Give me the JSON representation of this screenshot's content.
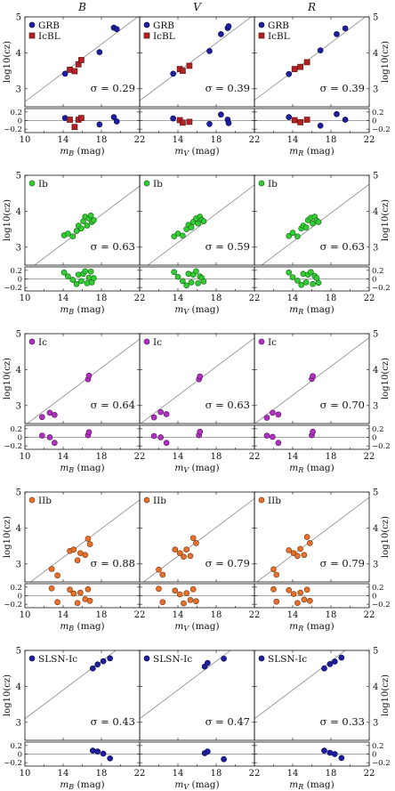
{
  "figure": {
    "column_titles": [
      "B",
      "V",
      "R"
    ]
  },
  "chart_data": [
    {
      "type": "scatter",
      "row_label": "GRB / IcBL",
      "legend": [
        "GRB",
        "IcBL"
      ],
      "colors": {
        "GRB": "#1e1ea0",
        "IcBL": "#b22222"
      },
      "legend_position": "top-left",
      "ylabel_left": "log10(cz)",
      "ylabel_right": "log10(cz)",
      "xlabels": [
        "mB (mag)",
        "mV (mag)",
        "mR (mag)"
      ],
      "xlim": [
        10,
        22
      ],
      "ylim": [
        2.5,
        5.0
      ],
      "residual_ylim": [
        -0.28,
        0.28
      ],
      "xticks": [
        10,
        14,
        18,
        22
      ],
      "yticks": [
        3,
        4,
        5
      ],
      "residual_yticks": [
        -0.2,
        0,
        0.2
      ],
      "fit_slope": 0.2,
      "sigma": [
        "σ = 0.29",
        "σ = 0.39",
        "σ = 0.39"
      ],
      "panels": [
        {
          "filter": "B",
          "fit_intercept": 0.64,
          "series": [
            {
              "name": "GRB",
              "marker": "circle",
              "x": [
                14.2,
                17.8,
                19.3,
                19.6
              ],
              "y": [
                3.42,
                4.02,
                4.7,
                4.66
              ],
              "resid": [
                0.06,
                -0.09,
                0.08,
                -0.02
              ]
            },
            {
              "name": "IcBL",
              "marker": "square",
              "x": [
                14.7,
                15.2,
                15.6,
                15.9
              ],
              "y": [
                3.53,
                3.49,
                3.68,
                3.8
              ],
              "resid": [
                0.02,
                -0.15,
                0.02,
                0.06
              ]
            }
          ]
        },
        {
          "filter": "V",
          "fit_intercept": 0.67,
          "series": [
            {
              "name": "GRB",
              "marker": "circle",
              "x": [
                13.5,
                17.3,
                18.5,
                19.2,
                19.3
              ],
              "y": [
                3.42,
                4.05,
                4.52,
                4.69,
                4.74
              ],
              "resid": [
                0.05,
                -0.08,
                0.14,
                0.02,
                -0.06
              ]
            },
            {
              "name": "IcBL",
              "marker": "square",
              "x": [
                14.2,
                14.5,
                15.2
              ],
              "y": [
                3.55,
                3.5,
                3.64
              ],
              "resid": [
                0.01,
                -0.05,
                -0.03
              ]
            }
          ]
        },
        {
          "filter": "R",
          "fit_intercept": 0.68,
          "series": [
            {
              "name": "GRB",
              "marker": "circle",
              "x": [
                13.6,
                16.9,
                18.6,
                19.5
              ],
              "y": [
                3.41,
                4.07,
                4.52,
                4.68
              ],
              "resid": [
                0.08,
                -0.12,
                0.15,
                0.02
              ]
            },
            {
              "name": "IcBL",
              "marker": "square",
              "x": [
                14.2,
                14.8,
                15.5
              ],
              "y": [
                3.55,
                3.61,
                3.74
              ],
              "resid": [
                0.01,
                -0.04,
                0.02
              ]
            }
          ]
        }
      ]
    },
    {
      "type": "scatter",
      "row_label": "Ib",
      "legend": [
        "Ib"
      ],
      "colors": {
        "Ib": "#32cd32"
      },
      "legend_position": "top-left",
      "ylabel_left": "log10(cz)",
      "ylabel_right": "log10(cz)",
      "xlabels": [
        "mB (mag)",
        "mV (mag)",
        "mR (mag)"
      ],
      "xlim": [
        10,
        22
      ],
      "ylim": [
        2.5,
        5.0
      ],
      "residual_ylim": [
        -0.28,
        0.28
      ],
      "xticks": [
        10,
        14,
        18,
        22
      ],
      "yticks": [
        3,
        4,
        5
      ],
      "residual_yticks": [
        -0.2,
        0,
        0.2
      ],
      "fit_slope": 0.2,
      "sigma": [
        "σ = 0.63",
        "σ = 0.59",
        "σ = 0.63"
      ],
      "panels": [
        {
          "filter": "B",
          "fit_intercept": 0.3,
          "series": [
            {
              "name": "Ib",
              "marker": "circle",
              "x": [
                14.1,
                14.5,
                15.0,
                15.4,
                15.6,
                15.9,
                16.1,
                16.3,
                16.5,
                16.7,
                16.9,
                17.0,
                17.2
              ],
              "y": [
                3.33,
                3.38,
                3.3,
                3.45,
                3.6,
                3.52,
                3.72,
                3.85,
                3.6,
                3.8,
                3.88,
                3.7,
                3.75
              ],
              "resid": [
                0.15,
                0.06,
                -0.02,
                -0.12,
                0.1,
                -0.05,
                0.12,
                0.18,
                -0.1,
                0.03,
                0.17,
                -0.08,
                0.02
              ]
            }
          ]
        },
        {
          "filter": "V",
          "fit_intercept": 0.33,
          "series": [
            {
              "name": "Ib",
              "marker": "circle",
              "x": [
                13.6,
                14.0,
                14.5,
                14.9,
                15.1,
                15.4,
                15.6,
                15.9,
                16.1,
                16.3,
                16.5,
                16.7
              ],
              "y": [
                3.3,
                3.38,
                3.32,
                3.5,
                3.62,
                3.55,
                3.7,
                3.8,
                3.66,
                3.85,
                3.76,
                3.72
              ],
              "resid": [
                0.16,
                0.05,
                -0.05,
                -0.15,
                0.12,
                -0.08,
                0.1,
                0.18,
                -0.1,
                0.06,
                0.02,
                -0.06
              ]
            }
          ]
        },
        {
          "filter": "R",
          "fit_intercept": 0.35,
          "series": [
            {
              "name": "Ib",
              "marker": "circle",
              "x": [
                13.6,
                14.0,
                14.5,
                14.9,
                15.1,
                15.4,
                15.6,
                15.9,
                16.1,
                16.3,
                16.5,
                16.7
              ],
              "y": [
                3.31,
                3.4,
                3.3,
                3.52,
                3.6,
                3.55,
                3.75,
                3.82,
                3.66,
                3.85,
                3.74,
                3.7
              ],
              "resid": [
                0.15,
                0.04,
                -0.04,
                -0.14,
                0.12,
                -0.08,
                0.1,
                0.16,
                -0.12,
                0.07,
                0.02,
                -0.09
              ]
            }
          ]
        }
      ]
    },
    {
      "type": "scatter",
      "row_label": "Ic",
      "legend": [
        "Ic"
      ],
      "colors": {
        "Ic": "#b030c0"
      },
      "legend_position": "top-left",
      "ylabel_left": "log10(cz)",
      "ylabel_right": "log10(cz)",
      "xlabels": [
        "mB (mag)",
        "mV (mag)",
        "mR (mag)"
      ],
      "xlim": [
        10,
        22
      ],
      "ylim": [
        2.5,
        5.0
      ],
      "residual_ylim": [
        -0.28,
        0.28
      ],
      "xticks": [
        10,
        14,
        18,
        22
      ],
      "yticks": [
        3,
        4,
        5
      ],
      "residual_yticks": [
        -0.2,
        0,
        0.2
      ],
      "fit_slope": 0.2,
      "sigma": [
        "σ = 0.64",
        "σ = 0.63",
        "σ = 0.70"
      ],
      "panels": [
        {
          "filter": "B",
          "fit_intercept": 0.45,
          "series": [
            {
              "name": "Ic",
              "marker": "circle",
              "x": [
                11.8,
                12.6,
                13.1,
                16.6,
                16.7
              ],
              "y": [
                2.68,
                2.8,
                2.74,
                3.73,
                3.83
              ],
              "resid": [
                0.04,
                0.0,
                -0.13,
                0.05,
                0.12
              ]
            }
          ]
        },
        {
          "filter": "V",
          "fit_intercept": 0.48,
          "series": [
            {
              "name": "Ic",
              "marker": "circle",
              "x": [
                11.5,
                12.2,
                12.8,
                16.2,
                16.3
              ],
              "y": [
                2.67,
                2.82,
                2.76,
                3.73,
                3.81
              ],
              "resid": [
                0.03,
                0.0,
                -0.13,
                0.05,
                0.13
              ]
            }
          ]
        },
        {
          "filter": "R",
          "fit_intercept": 0.49,
          "series": [
            {
              "name": "Ic",
              "marker": "circle",
              "x": [
                11.3,
                11.9,
                12.5,
                16.0,
                16.1
              ],
              "y": [
                2.66,
                2.8,
                2.75,
                3.74,
                3.82
              ],
              "resid": [
                0.04,
                0.01,
                -0.13,
                0.05,
                0.13
              ]
            }
          ]
        }
      ]
    },
    {
      "type": "scatter",
      "row_label": "IIb",
      "legend": [
        "IIb"
      ],
      "colors": {
        "IIb": "#e8702a"
      },
      "legend_position": "top-left",
      "ylabel_left": "log10(cz)",
      "ylabel_right": "log10(cz)",
      "xlabels": [
        "mB (mag)",
        "mV (mag)",
        "mR (mag)"
      ],
      "xlim": [
        10,
        22
      ],
      "ylim": [
        2.5,
        5.0
      ],
      "residual_ylim": [
        -0.28,
        0.28
      ],
      "xticks": [
        10,
        14,
        18,
        22
      ],
      "yticks": [
        3,
        4,
        5
      ],
      "residual_yticks": [
        -0.2,
        0,
        0.2
      ],
      "fit_slope": 0.2,
      "sigma": [
        "σ = 0.88",
        "σ = 0.79",
        "σ = 0.79"
      ],
      "panels": [
        {
          "filter": "B",
          "fit_intercept": 0.38,
          "series": [
            {
              "name": "IIb",
              "marker": "circle",
              "x": [
                12.8,
                13.4,
                14.7,
                15.1,
                15.5,
                15.8,
                16.3,
                16.6,
                16.8
              ],
              "y": [
                2.86,
                2.68,
                3.36,
                3.4,
                3.1,
                3.3,
                3.25,
                3.7,
                3.55
              ],
              "resid": [
                0.17,
                -0.15,
                0.14,
                0.05,
                -0.17,
                0.07,
                -0.08,
                0.15,
                -0.12
              ]
            }
          ]
        },
        {
          "filter": "V",
          "fit_intercept": 0.42,
          "series": [
            {
              "name": "IIb",
              "marker": "circle",
              "x": [
                12.0,
                12.4,
                13.7,
                14.2,
                14.6,
                14.9,
                15.3,
                15.6,
                15.9
              ],
              "y": [
                2.84,
                2.7,
                3.4,
                3.3,
                3.2,
                3.4,
                3.22,
                3.72,
                3.58
              ],
              "resid": [
                0.16,
                -0.15,
                0.12,
                0.03,
                -0.18,
                0.06,
                -0.1,
                0.15,
                -0.13
              ]
            }
          ]
        },
        {
          "filter": "R",
          "fit_intercept": 0.45,
          "series": [
            {
              "name": "IIb",
              "marker": "circle",
              "x": [
                12.0,
                12.3,
                13.6,
                14.1,
                14.5,
                14.8,
                15.2,
                15.5,
                15.8
              ],
              "y": [
                2.85,
                2.7,
                3.38,
                3.3,
                3.22,
                3.42,
                3.25,
                3.75,
                3.58
              ],
              "resid": [
                0.15,
                -0.14,
                0.13,
                0.04,
                -0.17,
                0.07,
                -0.09,
                0.14,
                -0.12
              ]
            }
          ]
        }
      ]
    },
    {
      "type": "scatter",
      "row_label": "SLSN-Ic",
      "legend": [
        "SLSN-Ic"
      ],
      "colors": {
        "SLSN-Ic": "#1e1ea0"
      },
      "legend_position": "top-left",
      "ylabel_left": "log10(cz)",
      "ylabel_right": "log10(cz)",
      "xlabels": [
        "mB (mag)",
        "mV (mag)",
        "mR (mag)"
      ],
      "xlim": [
        10,
        22
      ],
      "ylim": [
        2.5,
        5.0
      ],
      "residual_ylim": [
        -0.28,
        0.28
      ],
      "xticks": [
        10,
        14,
        18,
        22
      ],
      "yticks": [
        3,
        4,
        5
      ],
      "residual_yticks": [
        -0.2,
        0,
        0.2
      ],
      "fit_slope": 0.2,
      "sigma": [
        "σ = 0.43",
        "σ = 0.47",
        "σ = 0.33"
      ],
      "panels": [
        {
          "filter": "B",
          "fit_intercept": 1.1,
          "series": [
            {
              "name": "SLSN-Ic",
              "marker": "circle",
              "x": [
                17.1,
                17.6,
                18.2,
                18.9
              ],
              "y": [
                4.5,
                4.61,
                4.7,
                4.78
              ],
              "resid": [
                0.08,
                0.06,
                0.01,
                -0.1
              ]
            }
          ]
        },
        {
          "filter": "V",
          "fit_intercept": 1.1,
          "series": [
            {
              "name": "SLSN-Ic",
              "marker": "circle",
              "x": [
                16.8,
                17.1,
                18.8
              ],
              "y": [
                4.55,
                4.65,
                4.77
              ],
              "resid": [
                0.02,
                0.06,
                -0.12
              ]
            }
          ]
        },
        {
          "filter": "R",
          "fit_intercept": 1.1,
          "series": [
            {
              "name": "SLSN-Ic",
              "marker": "circle",
              "x": [
                17.3,
                17.9,
                18.4,
                19.1
              ],
              "y": [
                4.5,
                4.62,
                4.69,
                4.8
              ],
              "resid": [
                0.08,
                0.03,
                0.0,
                -0.09
              ]
            }
          ]
        }
      ]
    }
  ]
}
